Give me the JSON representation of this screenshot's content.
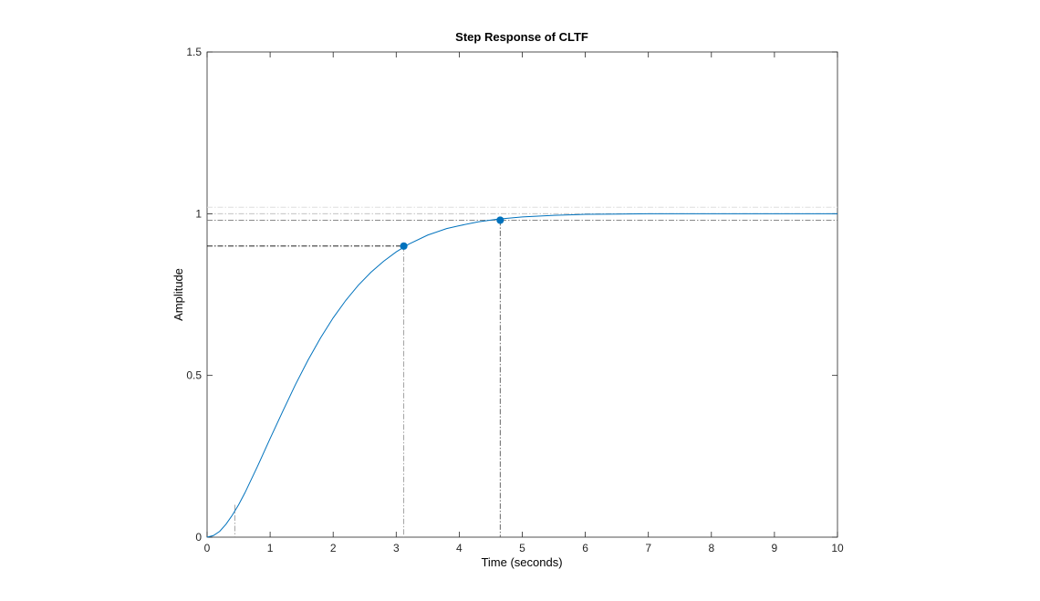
{
  "chart_data": {
    "type": "line",
    "title": "Step Response of CLTF",
    "xlabel": "Time (seconds)",
    "ylabel": "Amplitude",
    "xlim": [
      0,
      10
    ],
    "ylim": [
      0,
      1.5
    ],
    "xticks": [
      0,
      1,
      2,
      3,
      4,
      5,
      6,
      7,
      8,
      9,
      10
    ],
    "yticks": [
      0,
      0.5,
      1,
      1.5
    ],
    "xtick_labels": [
      "0",
      "1",
      "2",
      "3",
      "4",
      "5",
      "6",
      "7",
      "8",
      "9",
      "10"
    ],
    "ytick_labels": [
      "0",
      "0.5",
      "1",
      "1.5"
    ],
    "grid": false,
    "series": [
      {
        "color": "#0072bd",
        "x": [
          0,
          0.1,
          0.2,
          0.3,
          0.4,
          0.5,
          0.6,
          0.8,
          1.0,
          1.2,
          1.4,
          1.6,
          1.8,
          2.0,
          2.2,
          2.4,
          2.6,
          2.8,
          3.0,
          3.2,
          3.5,
          3.8,
          4.0,
          4.3,
          4.6,
          5.0,
          5.5,
          6.0,
          6.5,
          7.0,
          7.5,
          8.0,
          9.0,
          10.0
        ],
        "y": [
          0,
          0.005,
          0.018,
          0.04,
          0.068,
          0.1,
          0.137,
          0.219,
          0.305,
          0.389,
          0.471,
          0.547,
          0.616,
          0.678,
          0.732,
          0.779,
          0.819,
          0.853,
          0.882,
          0.906,
          0.934,
          0.954,
          0.963,
          0.975,
          0.983,
          0.99,
          0.995,
          0.998,
          0.999,
          1.0,
          1.0,
          1.0,
          1.0,
          1.0
        ]
      }
    ],
    "markers": [
      {
        "name": "rise-time-point",
        "x": 3.12,
        "y": 0.9,
        "color": "#0072bd"
      },
      {
        "name": "settling-time-point",
        "x": 4.65,
        "y": 0.98,
        "color": "#0072bd"
      }
    ],
    "reference_lines": [
      {
        "name": "rise-10-percent-vline",
        "orientation": "vertical",
        "x": 0.44,
        "y_end": 0.1,
        "color": "#999999"
      },
      {
        "name": "rise-90-percent-vline",
        "orientation": "vertical",
        "x": 3.12,
        "y_end": 0.9,
        "color": "#999999"
      },
      {
        "name": "rise-90-percent-hline",
        "orientation": "horizontal",
        "y": 0.9,
        "x_end": 3.12,
        "color": "#000000"
      },
      {
        "name": "settling-time-vline",
        "orientation": "vertical",
        "x": 4.65,
        "y_end": 0.98,
        "color": "#555555"
      },
      {
        "name": "settling-lower-band-line",
        "orientation": "horizontal",
        "y": 0.98,
        "color": "#777777"
      },
      {
        "name": "steady-state-line",
        "orientation": "horizontal",
        "y": 1.0,
        "color": "#bbbbbb"
      },
      {
        "name": "settling-upper-band-line",
        "orientation": "horizontal",
        "y": 1.02,
        "color": "#dddddd"
      }
    ]
  }
}
